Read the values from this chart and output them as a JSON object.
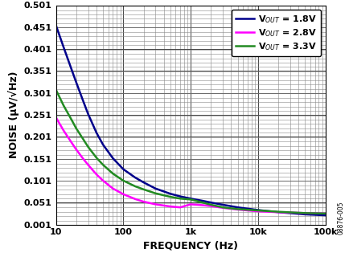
{
  "title": "",
  "xlabel": "FREQUENCY (Hz)",
  "ylabel": "NOISE (μV/√Hz)",
  "xlim": [
    10,
    100000
  ],
  "ylim": [
    0.001,
    0.501
  ],
  "yticks": [
    0.001,
    0.051,
    0.101,
    0.151,
    0.201,
    0.251,
    0.301,
    0.351,
    0.401,
    0.451,
    0.501
  ],
  "ytick_labels": [
    "0.001",
    "0.051",
    "0.101",
    "0.151",
    "0.201",
    "0.251",
    "0.301",
    "0.351",
    "0.401",
    "0.451",
    "0.501"
  ],
  "legend": [
    {
      "label": "V$_{OUT}$ = 1.8V",
      "color": "#00008B"
    },
    {
      "label": "V$_{OUT}$ = 2.8V",
      "color": "#FF00FF"
    },
    {
      "label": "V$_{OUT}$ = 3.3V",
      "color": "#228B22"
    }
  ],
  "curves": {
    "1.8V": {
      "color": "#00008B",
      "freq": [
        10,
        13,
        17,
        20,
        25,
        30,
        40,
        50,
        70,
        100,
        150,
        200,
        300,
        500,
        700,
        1000,
        1500,
        2000,
        3000,
        5000,
        10000,
        20000,
        50000,
        100000
      ],
      "noise": [
        0.455,
        0.405,
        0.355,
        0.325,
        0.285,
        0.253,
        0.21,
        0.183,
        0.152,
        0.127,
        0.108,
        0.097,
        0.083,
        0.071,
        0.065,
        0.06,
        0.055,
        0.051,
        0.046,
        0.04,
        0.034,
        0.029,
        0.024,
        0.022
      ]
    },
    "2.8V": {
      "color": "#FF00FF",
      "freq": [
        10,
        13,
        17,
        20,
        25,
        30,
        40,
        50,
        70,
        100,
        150,
        200,
        300,
        500,
        700,
        1000,
        1500,
        2000,
        3000,
        5000,
        10000,
        20000,
        50000,
        100000
      ],
      "noise": [
        0.245,
        0.215,
        0.188,
        0.172,
        0.152,
        0.137,
        0.115,
        0.101,
        0.083,
        0.07,
        0.059,
        0.053,
        0.047,
        0.042,
        0.04,
        0.047,
        0.045,
        0.043,
        0.039,
        0.035,
        0.031,
        0.029,
        0.027,
        0.026
      ]
    },
    "3.3V": {
      "color": "#228B22",
      "freq": [
        10,
        13,
        17,
        20,
        25,
        30,
        40,
        50,
        70,
        100,
        150,
        200,
        300,
        500,
        700,
        1000,
        1500,
        2000,
        3000,
        5000,
        10000,
        20000,
        50000,
        100000
      ],
      "noise": [
        0.308,
        0.272,
        0.24,
        0.22,
        0.197,
        0.178,
        0.153,
        0.137,
        0.117,
        0.101,
        0.088,
        0.081,
        0.072,
        0.064,
        0.06,
        0.058,
        0.051,
        0.046,
        0.04,
        0.036,
        0.033,
        0.03,
        0.027,
        0.026
      ]
    }
  },
  "watermark": "08876-005",
  "background_color": "#ffffff",
  "grid_major_color": "#444444",
  "grid_minor_color": "#888888",
  "linewidth": 1.8
}
